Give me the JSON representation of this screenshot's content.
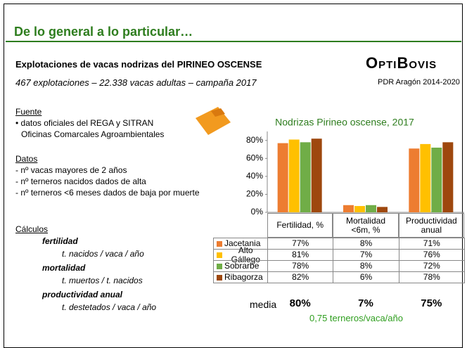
{
  "header": {
    "title": "De lo general a lo particular…",
    "subtitle": "Explotaciones de vacas nodrizas del PIRINEO OSCENSE",
    "summary": "467 explotaciones – 22.338 vacas adultas – campaña 2017",
    "logo": "OptiBovis",
    "logo_note": "PDR Aragón 2014-2020"
  },
  "sections": [
    {
      "heading": "Fuente",
      "items": [
        "• datos oficiales del REGA y SITRAN",
        "Oficinas Comarcales Agroambientales"
      ]
    },
    {
      "heading": "Datos",
      "items": [
        "-   nº vacas mayores de 2 años",
        "-   nº terneros nacidos dados de alta",
        "-   nº terneros <6 meses dados de baja por muerte"
      ]
    }
  ],
  "calculations": {
    "heading": "Cálculos",
    "items": [
      {
        "name": "fertilidad",
        "formula": "t. nacidos / vaca / año"
      },
      {
        "name": "mortalidad",
        "formula": "t. muertos / t. nacidos"
      },
      {
        "name": "productividad anual",
        "formula": "t. destetados / vaca / año"
      }
    ]
  },
  "chart_data": {
    "type": "bar",
    "title": "Nodrizas Pirineo oscense, 2017",
    "categories": [
      "Fertilidad, %",
      "Mortalidad\n<6m, %",
      "Productividad\nanual"
    ],
    "series": [
      {
        "name": "Jacetania",
        "color": "#ED7D31",
        "values": [
          77,
          8,
          71
        ],
        "value_labels": [
          "77%",
          "8%",
          "71%"
        ]
      },
      {
        "name": "Alto Gállego",
        "color": "#FFC000",
        "values": [
          81,
          7,
          76
        ],
        "value_labels": [
          "81%",
          "7%",
          "76%"
        ]
      },
      {
        "name": "Sobrarbe",
        "color": "#70AD47",
        "values": [
          78,
          8,
          72
        ],
        "value_labels": [
          "78%",
          "8%",
          "72%"
        ]
      },
      {
        "name": "Ribagorza",
        "color": "#9E480E",
        "values": [
          82,
          6,
          78
        ],
        "value_labels": [
          "82%",
          "6%",
          "78%"
        ]
      }
    ],
    "ylim": [
      0,
      90
    ],
    "yticks": [
      {
        "value": 0,
        "label": "0%"
      },
      {
        "value": 20,
        "label": "20%"
      },
      {
        "value": 40,
        "label": "40%"
      },
      {
        "value": 60,
        "label": "60%"
      },
      {
        "value": 80,
        "label": "80%"
      }
    ],
    "mean_label": "media",
    "mean_values": [
      "80%",
      "7%",
      "75%"
    ],
    "note": "0,75 terneros/vaca/año"
  }
}
